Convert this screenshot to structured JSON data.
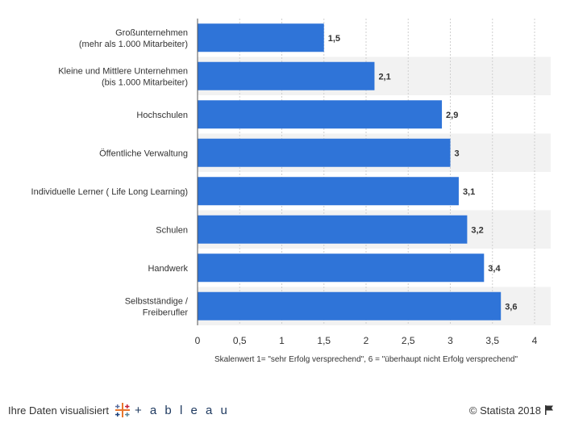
{
  "chart_data": {
    "type": "bar",
    "orientation": "horizontal",
    "categories": [
      [
        "Großunternehmen",
        "(mehr als 1.000 Mitarbeiter)"
      ],
      [
        "Kleine und Mittlere Unternehmen",
        "(bis 1.000 Mitarbeiter)"
      ],
      [
        "Hochschulen"
      ],
      [
        "Öffentliche Verwaltung"
      ],
      [
        "Individuelle Lerner ( Life Long Learning)"
      ],
      [
        "Schulen"
      ],
      [
        "Handwerk"
      ],
      [
        "Selbstständige /",
        "Freiberufler"
      ]
    ],
    "values": [
      1.5,
      2.1,
      2.9,
      3,
      3.1,
      3.2,
      3.4,
      3.6
    ],
    "value_labels": [
      "1,5",
      "2,1",
      "2,9",
      "3",
      "3,1",
      "3,2",
      "3,4",
      "3,6"
    ],
    "xlim": [
      0,
      4
    ],
    "xticks": [
      0,
      0.5,
      1,
      1.5,
      2,
      2.5,
      3,
      3.5,
      4
    ],
    "xtick_labels": [
      "0",
      "0,5",
      "1",
      "1,5",
      "2",
      "2,5",
      "3",
      "3,5",
      "4"
    ],
    "xlabel": "Skalenwert 1= \"sehr Erfolg versprechend\", 6 = \"überhaupt nicht Erfolg versprechend\"",
    "grid": "vertical dashed",
    "bar_color": "#2f74d8",
    "band_color": "#f2f2f2"
  },
  "footer": {
    "left_text": "Ihre Daten visualisiert",
    "tableau_label": "+ a b l e a u",
    "copyright": "© Statista 2018",
    "flag_icon": "flag-icon"
  }
}
